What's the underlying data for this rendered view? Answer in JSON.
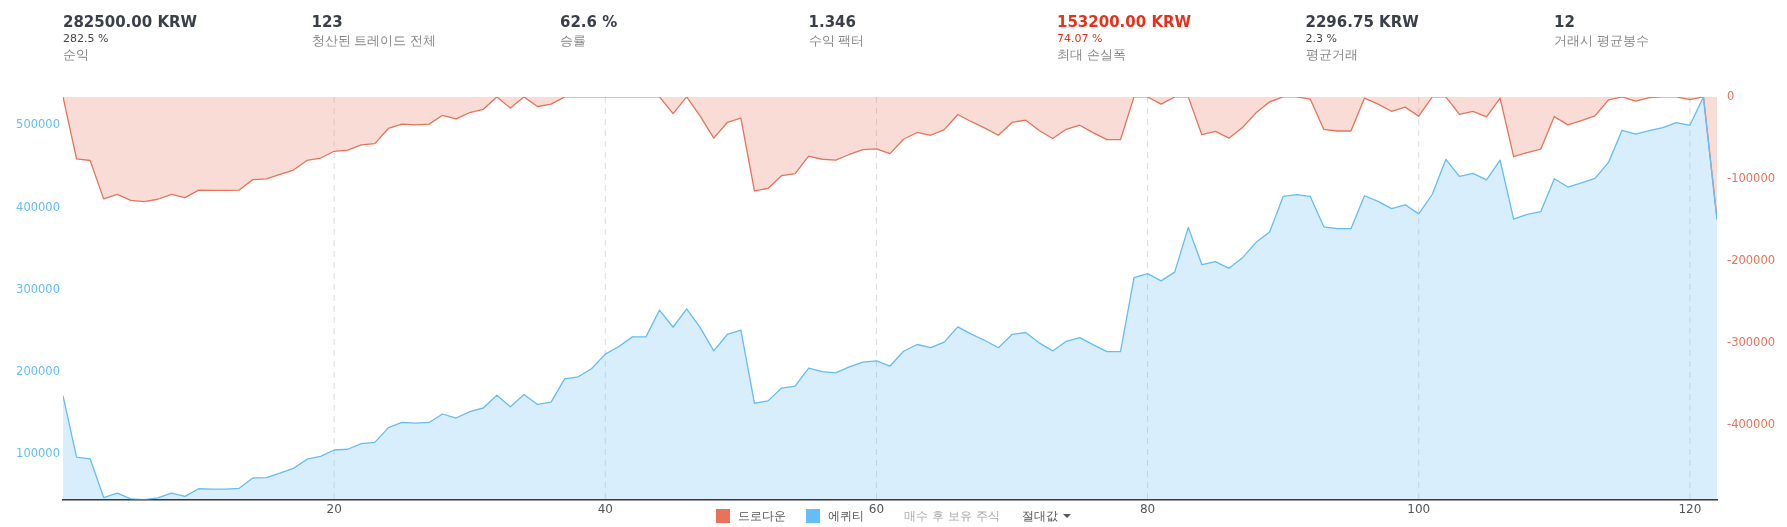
{
  "chart_data": {
    "type": "area",
    "x": [
      0,
      1,
      2,
      3,
      4,
      5,
      6,
      7,
      8,
      9,
      10,
      11,
      12,
      13,
      14,
      15,
      16,
      17,
      18,
      19,
      20,
      21,
      22,
      23,
      24,
      25,
      26,
      27,
      28,
      29,
      30,
      31,
      32,
      33,
      34,
      35,
      36,
      37,
      38,
      39,
      40,
      41,
      42,
      43,
      44,
      45,
      46,
      47,
      48,
      49,
      50,
      51,
      52,
      53,
      54,
      55,
      56,
      57,
      58,
      59,
      60,
      61,
      62,
      63,
      64,
      65,
      66,
      67,
      68,
      69,
      70,
      71,
      72,
      73,
      74,
      75,
      76,
      77,
      78,
      79,
      80,
      81,
      82,
      83,
      84,
      85,
      86,
      87,
      88,
      89,
      90,
      91,
      92,
      93,
      94,
      95,
      96,
      97,
      98,
      99,
      100,
      101,
      102,
      103,
      104,
      105,
      106,
      107,
      108,
      109,
      110,
      111,
      112,
      113,
      114,
      115,
      116,
      117,
      118,
      119,
      120,
      121,
      122
    ],
    "series": [
      {
        "name": "드로다운",
        "color": "#e8735a",
        "axis": "y2",
        "values": [
          0,
          -75400,
          -77400,
          -124100,
          -118700,
          -126000,
          -127500,
          -124600,
          -118700,
          -122600,
          -113400,
          -113900,
          -113900,
          -113400,
          -100700,
          -99800,
          -94400,
          -89000,
          -77400,
          -74400,
          -66200,
          -64700,
          -58400,
          -56900,
          -38400,
          -33100,
          -34100,
          -33100,
          -22400,
          -26800,
          -19000,
          -15100,
          0,
          -13600,
          0,
          -11700,
          -8800,
          0,
          0,
          0,
          0,
          0,
          0,
          0,
          0,
          -20400,
          0,
          -23400,
          -50100,
          -31100,
          -25800,
          -114400,
          -111400,
          -95900,
          -93400,
          -72000,
          -75900,
          -76900,
          -70100,
          -64200,
          -63300,
          -69100,
          -51600,
          -43300,
          -46700,
          -39900,
          -21400,
          -30200,
          -38000,
          -46700,
          -31100,
          -28200,
          -40900,
          -50600,
          -39400,
          -34500,
          -43800,
          -52100,
          -52100,
          0,
          0,
          -8800,
          0,
          0,
          -46000,
          -41900,
          -50200,
          -37300,
          -19400,
          -6000,
          0,
          0,
          -2800,
          -39600,
          -41500,
          -41500,
          -1400,
          -8800,
          -17500,
          -12400,
          -23500,
          0,
          0,
          -21200,
          -17500,
          -24400,
          -1400,
          -72800,
          -67700,
          -63600,
          -24000,
          -34100,
          -29000,
          -23000,
          -3700,
          0,
          -5100,
          -900,
          0,
          0,
          -3200,
          0,
          -148900
        ]
      },
      {
        "name": "에퀴티",
        "color": "#63bdf6",
        "values": [
          171000,
          96100,
          94200,
          47000,
          52300,
          45500,
          44500,
          46500,
          52300,
          48400,
          57700,
          57200,
          57200,
          58200,
          70800,
          71300,
          76600,
          82500,
          93700,
          97100,
          104900,
          105800,
          112700,
          114100,
          132100,
          138400,
          137500,
          138400,
          148700,
          143800,
          151600,
          156000,
          171500,
          157400,
          172500,
          160300,
          163200,
          191500,
          194000,
          204100,
          221600,
          230900,
          242600,
          242600,
          275200,
          254300,
          276600,
          253800,
          225500,
          245500,
          250800,
          161800,
          164700,
          180300,
          182700,
          204600,
          200200,
          198800,
          206100,
          211900,
          213400,
          207100,
          225100,
          233300,
          229400,
          236200,
          254700,
          246000,
          238200,
          229400,
          245500,
          247900,
          235300,
          225500,
          237200,
          241600,
          232800,
          224600,
          224600,
          314600,
          319500,
          310700,
          321400,
          375900,
          330600,
          334200,
          326000,
          338800,
          357700,
          370200,
          413500,
          415800,
          413500,
          376600,
          374300,
          374300,
          414400,
          407500,
          398700,
          403400,
          392300,
          416200,
          458700,
          437900,
          441600,
          433800,
          457700,
          385800,
          391800,
          395000,
          435100,
          425000,
          430100,
          435600,
          455000,
          494100,
          489500,
          493600,
          497300,
          503300,
          500100,
          534700,
          385800
        ]
      }
    ],
    "xlim": [
      0,
      122
    ],
    "xticks": [
      20,
      40,
      60,
      80,
      100,
      120
    ],
    "ylim": [
      44500,
      534700
    ],
    "yticks": [
      100000,
      200000,
      300000,
      400000,
      500000
    ],
    "y2lim": [
      -490200,
      0
    ],
    "y2ticks": [
      0,
      -100000,
      -200000,
      -300000,
      -400000
    ],
    "grid": "x",
    "marker": "none",
    "line_style": "solid",
    "legend": "bottom",
    "annotations": [
      "282500.00 KRW\n282.5 %\n순익",
      "123\n청산된 트레이드 전체",
      "62.6 %\n승률",
      "1.346\n수익 팩터",
      "153200.00 KRW\n74.07 %\n최대 손실폭",
      "2296.75 KRW\n2.3 %\n평균거래",
      "12\n거래시 평균봉수",
      "매수 후 보유 주식",
      "절대값"
    ]
  }
}
